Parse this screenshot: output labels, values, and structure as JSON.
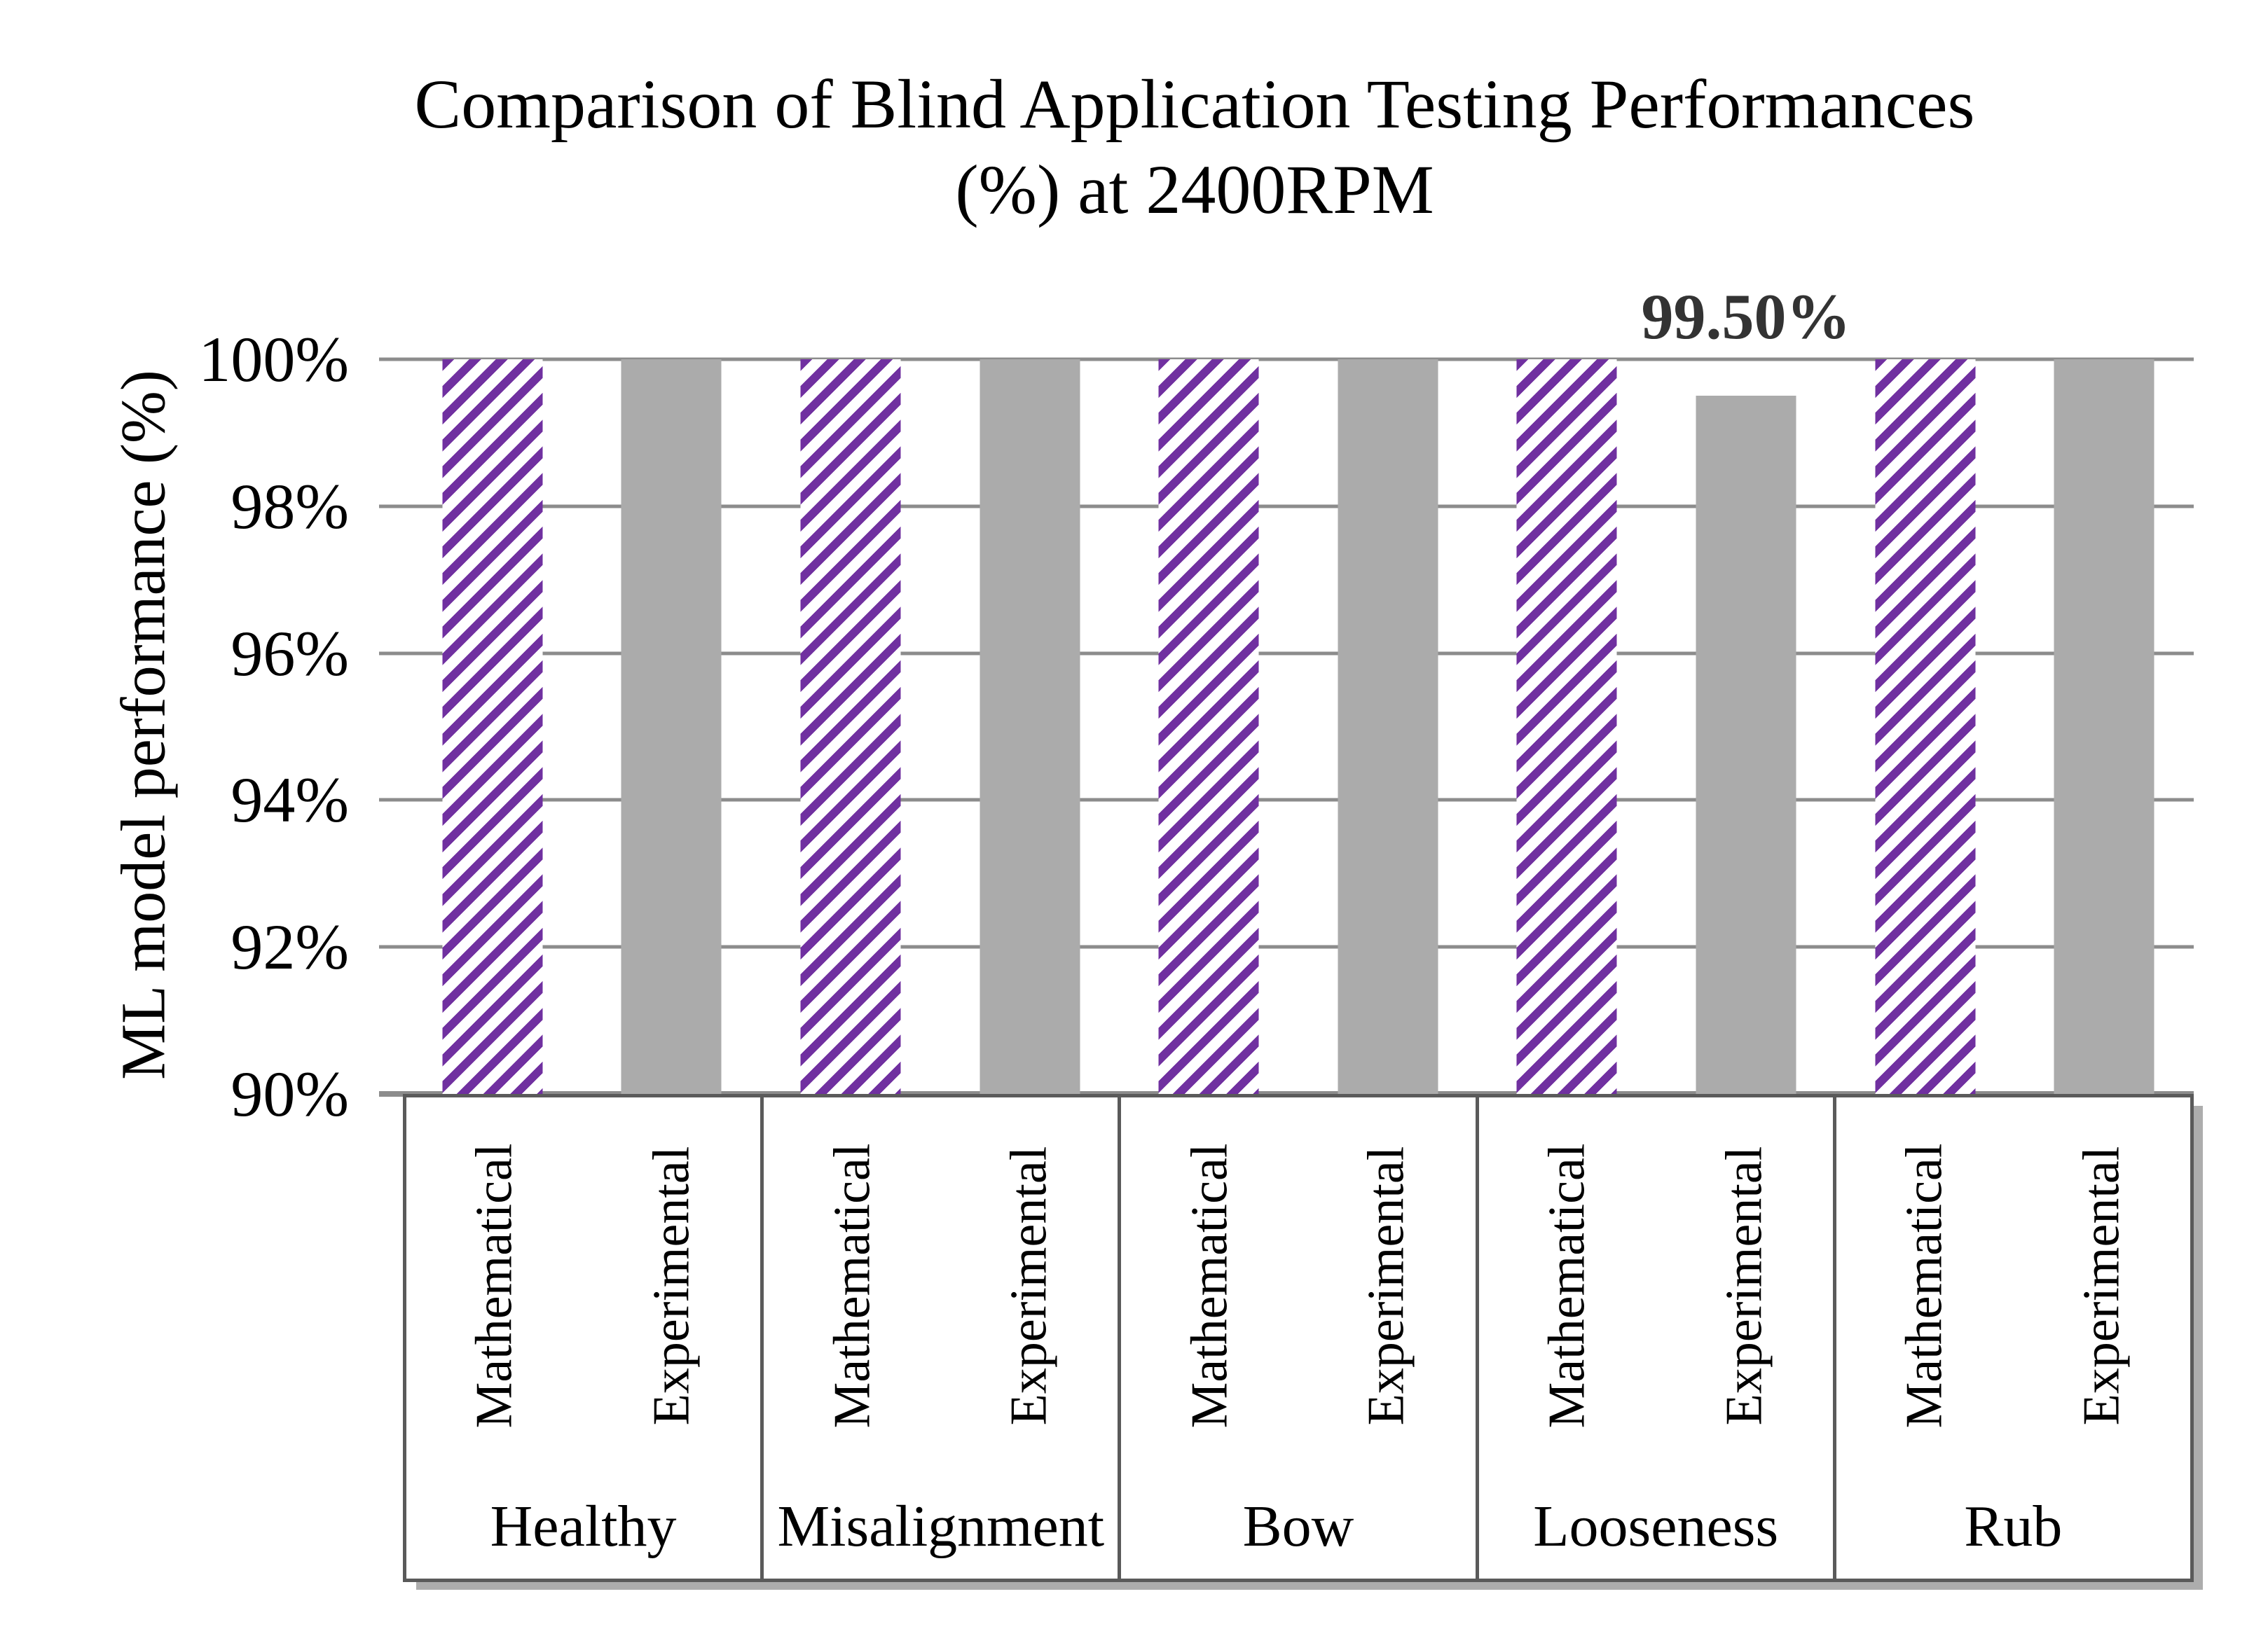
{
  "chart_data": {
    "type": "bar",
    "title_lines": [
      "Comparison of Blind Application Testing Performances",
      "(%) at 2400RPM"
    ],
    "ylabel": "ML model performance (%)",
    "ylim": [
      90,
      100
    ],
    "yticks": [
      "100%",
      "98%",
      "96%",
      "94%",
      "92%",
      "90%"
    ],
    "grid": "horizontal",
    "legend": "none",
    "categories": [
      "Healthy",
      "Misalignment",
      "Bow",
      "Looseness",
      "Rub"
    ],
    "series": [
      {
        "name": "Mathematical",
        "style": "purple-diagonal-hatch",
        "values": [
          100,
          100,
          100,
          100,
          100
        ]
      },
      {
        "name": "Experimental",
        "style": "solid-gray",
        "values": [
          100,
          100,
          100,
          99.5,
          100
        ]
      }
    ],
    "data_label": {
      "text": "99.50%",
      "series": "Experimental",
      "category": "Looseness",
      "value": 99.5
    }
  },
  "colors": {
    "bg": "#ffffff",
    "text": "#000000",
    "label": "#333333",
    "purple": "#7030A0",
    "bar-gray": "#ABABAB",
    "grid": "#8C8C8C",
    "border": "#5A5A5A"
  }
}
